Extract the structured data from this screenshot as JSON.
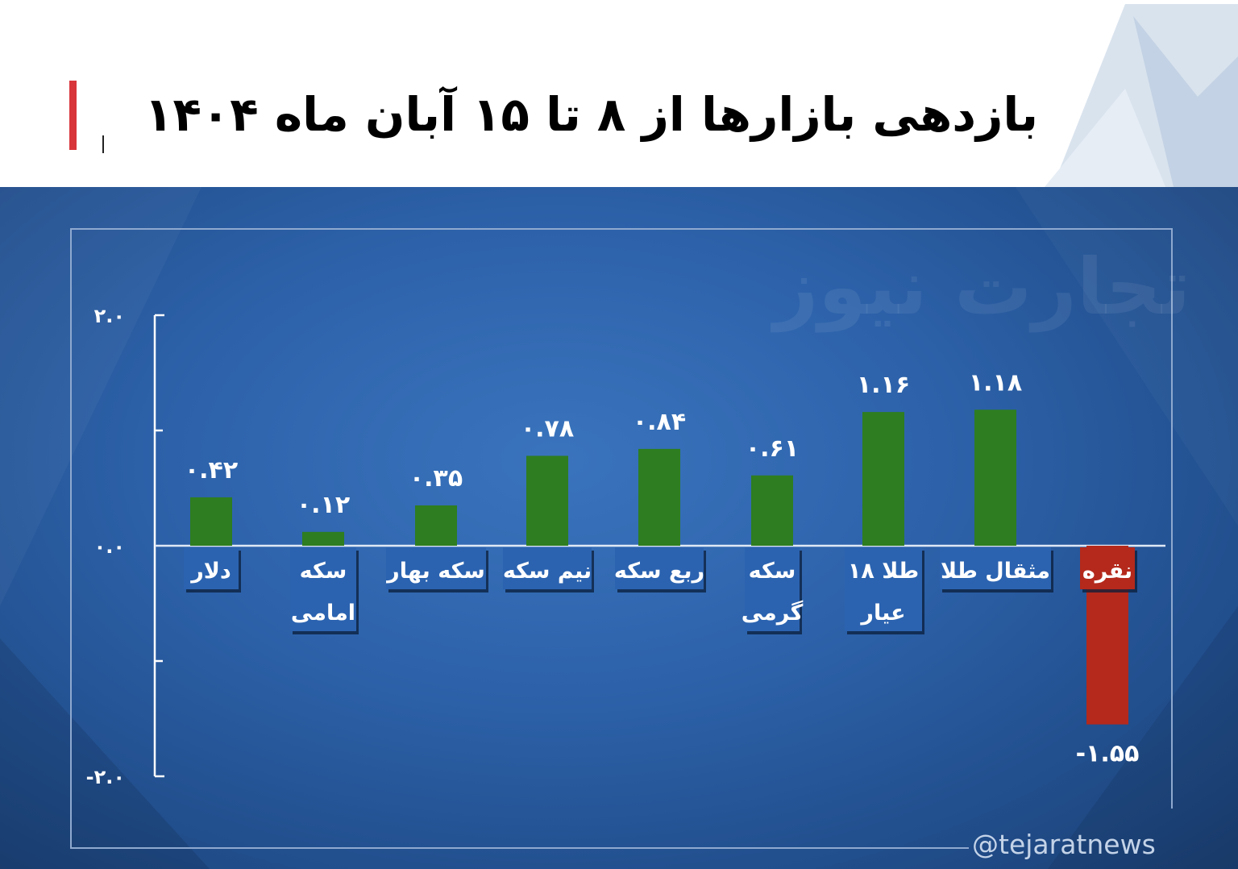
{
  "header": {
    "title": "بازدهی بازارها از ۸ تا ۱۵ آبان ماه ۱۴۰۴"
  },
  "watermark": "تجارت نیوز",
  "handle": "@tejaratnews",
  "colors": {
    "positive": "#2e7d20",
    "negative": "#b4291c",
    "label_box": "#2b63b0",
    "accent": "#d8353b"
  },
  "chart_data": {
    "type": "bar",
    "categories": [
      "دلار",
      "سکه امامی",
      "سکه بهار",
      "نیم سکه",
      "ربع سکه",
      "سکه گرمی",
      "طلا ۱۸ عیار",
      "مثقال طلا",
      "نقره"
    ],
    "category_lines": [
      [
        "دلار"
      ],
      [
        "سکه",
        "امامی"
      ],
      [
        "سکه بهار"
      ],
      [
        "نیم سکه"
      ],
      [
        "ربع سکه"
      ],
      [
        "سکه",
        "گرمی"
      ],
      [
        "طلا ۱۸",
        "عیار"
      ],
      [
        "مثقال طلا"
      ],
      [
        "نقره"
      ]
    ],
    "values": [
      0.42,
      0.12,
      0.35,
      0.78,
      0.84,
      0.61,
      1.16,
      1.18,
      -1.55
    ],
    "value_labels": [
      "۰.۴۲",
      "۰.۱۲",
      "۰.۳۵",
      "۰.۷۸",
      "۰.۸۴",
      "۰.۶۱",
      "۱.۱۶",
      "۱.۱۸",
      "-۱.۵۵"
    ],
    "y_ticks": [
      {
        "value": 2.0,
        "label": "۲.۰"
      },
      {
        "value": 0.0,
        "label": "۰.۰"
      },
      {
        "value": -2.0,
        "label": "-۲.۰"
      }
    ],
    "minor_ticks": [
      1.0,
      -1.0
    ],
    "ylim": [
      -2.0,
      2.0
    ],
    "title": "",
    "xlabel": "",
    "ylabel": ""
  }
}
